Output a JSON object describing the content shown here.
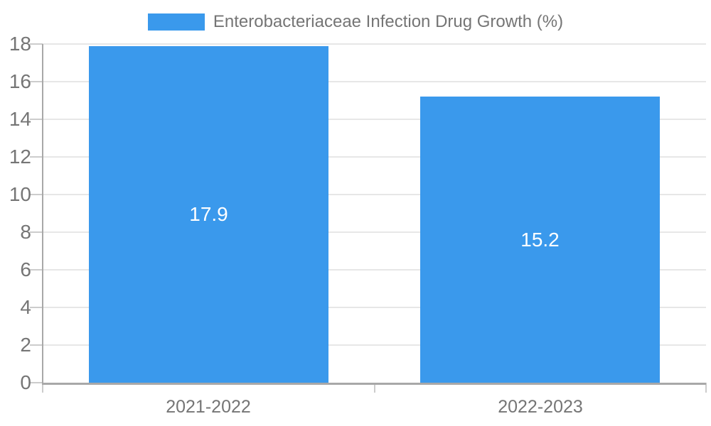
{
  "chart_data": {
    "type": "bar",
    "title": "Enterobacteriaceae Infection Drug Growth (%)",
    "legend": [
      "Enterobacteriaceae Infection Drug Growth (%)"
    ],
    "legend_position": "top-center",
    "categories": [
      "2021-2022",
      "2022-2023"
    ],
    "values": [
      17.9,
      15.2
    ],
    "xlabel": "",
    "ylabel": "",
    "ylim": [
      0,
      18
    ],
    "yticks": [
      0,
      2,
      4,
      6,
      8,
      10,
      12,
      14,
      16,
      18
    ],
    "grid": true,
    "colors": {
      "bar": "#3A99EC",
      "axis_text": "#757575",
      "value_text": "#ffffff",
      "gridline": "#e7e7e7",
      "axis_line": "#a8a8a8",
      "tick_line": "#cccccc",
      "background": "#ffffff"
    }
  }
}
